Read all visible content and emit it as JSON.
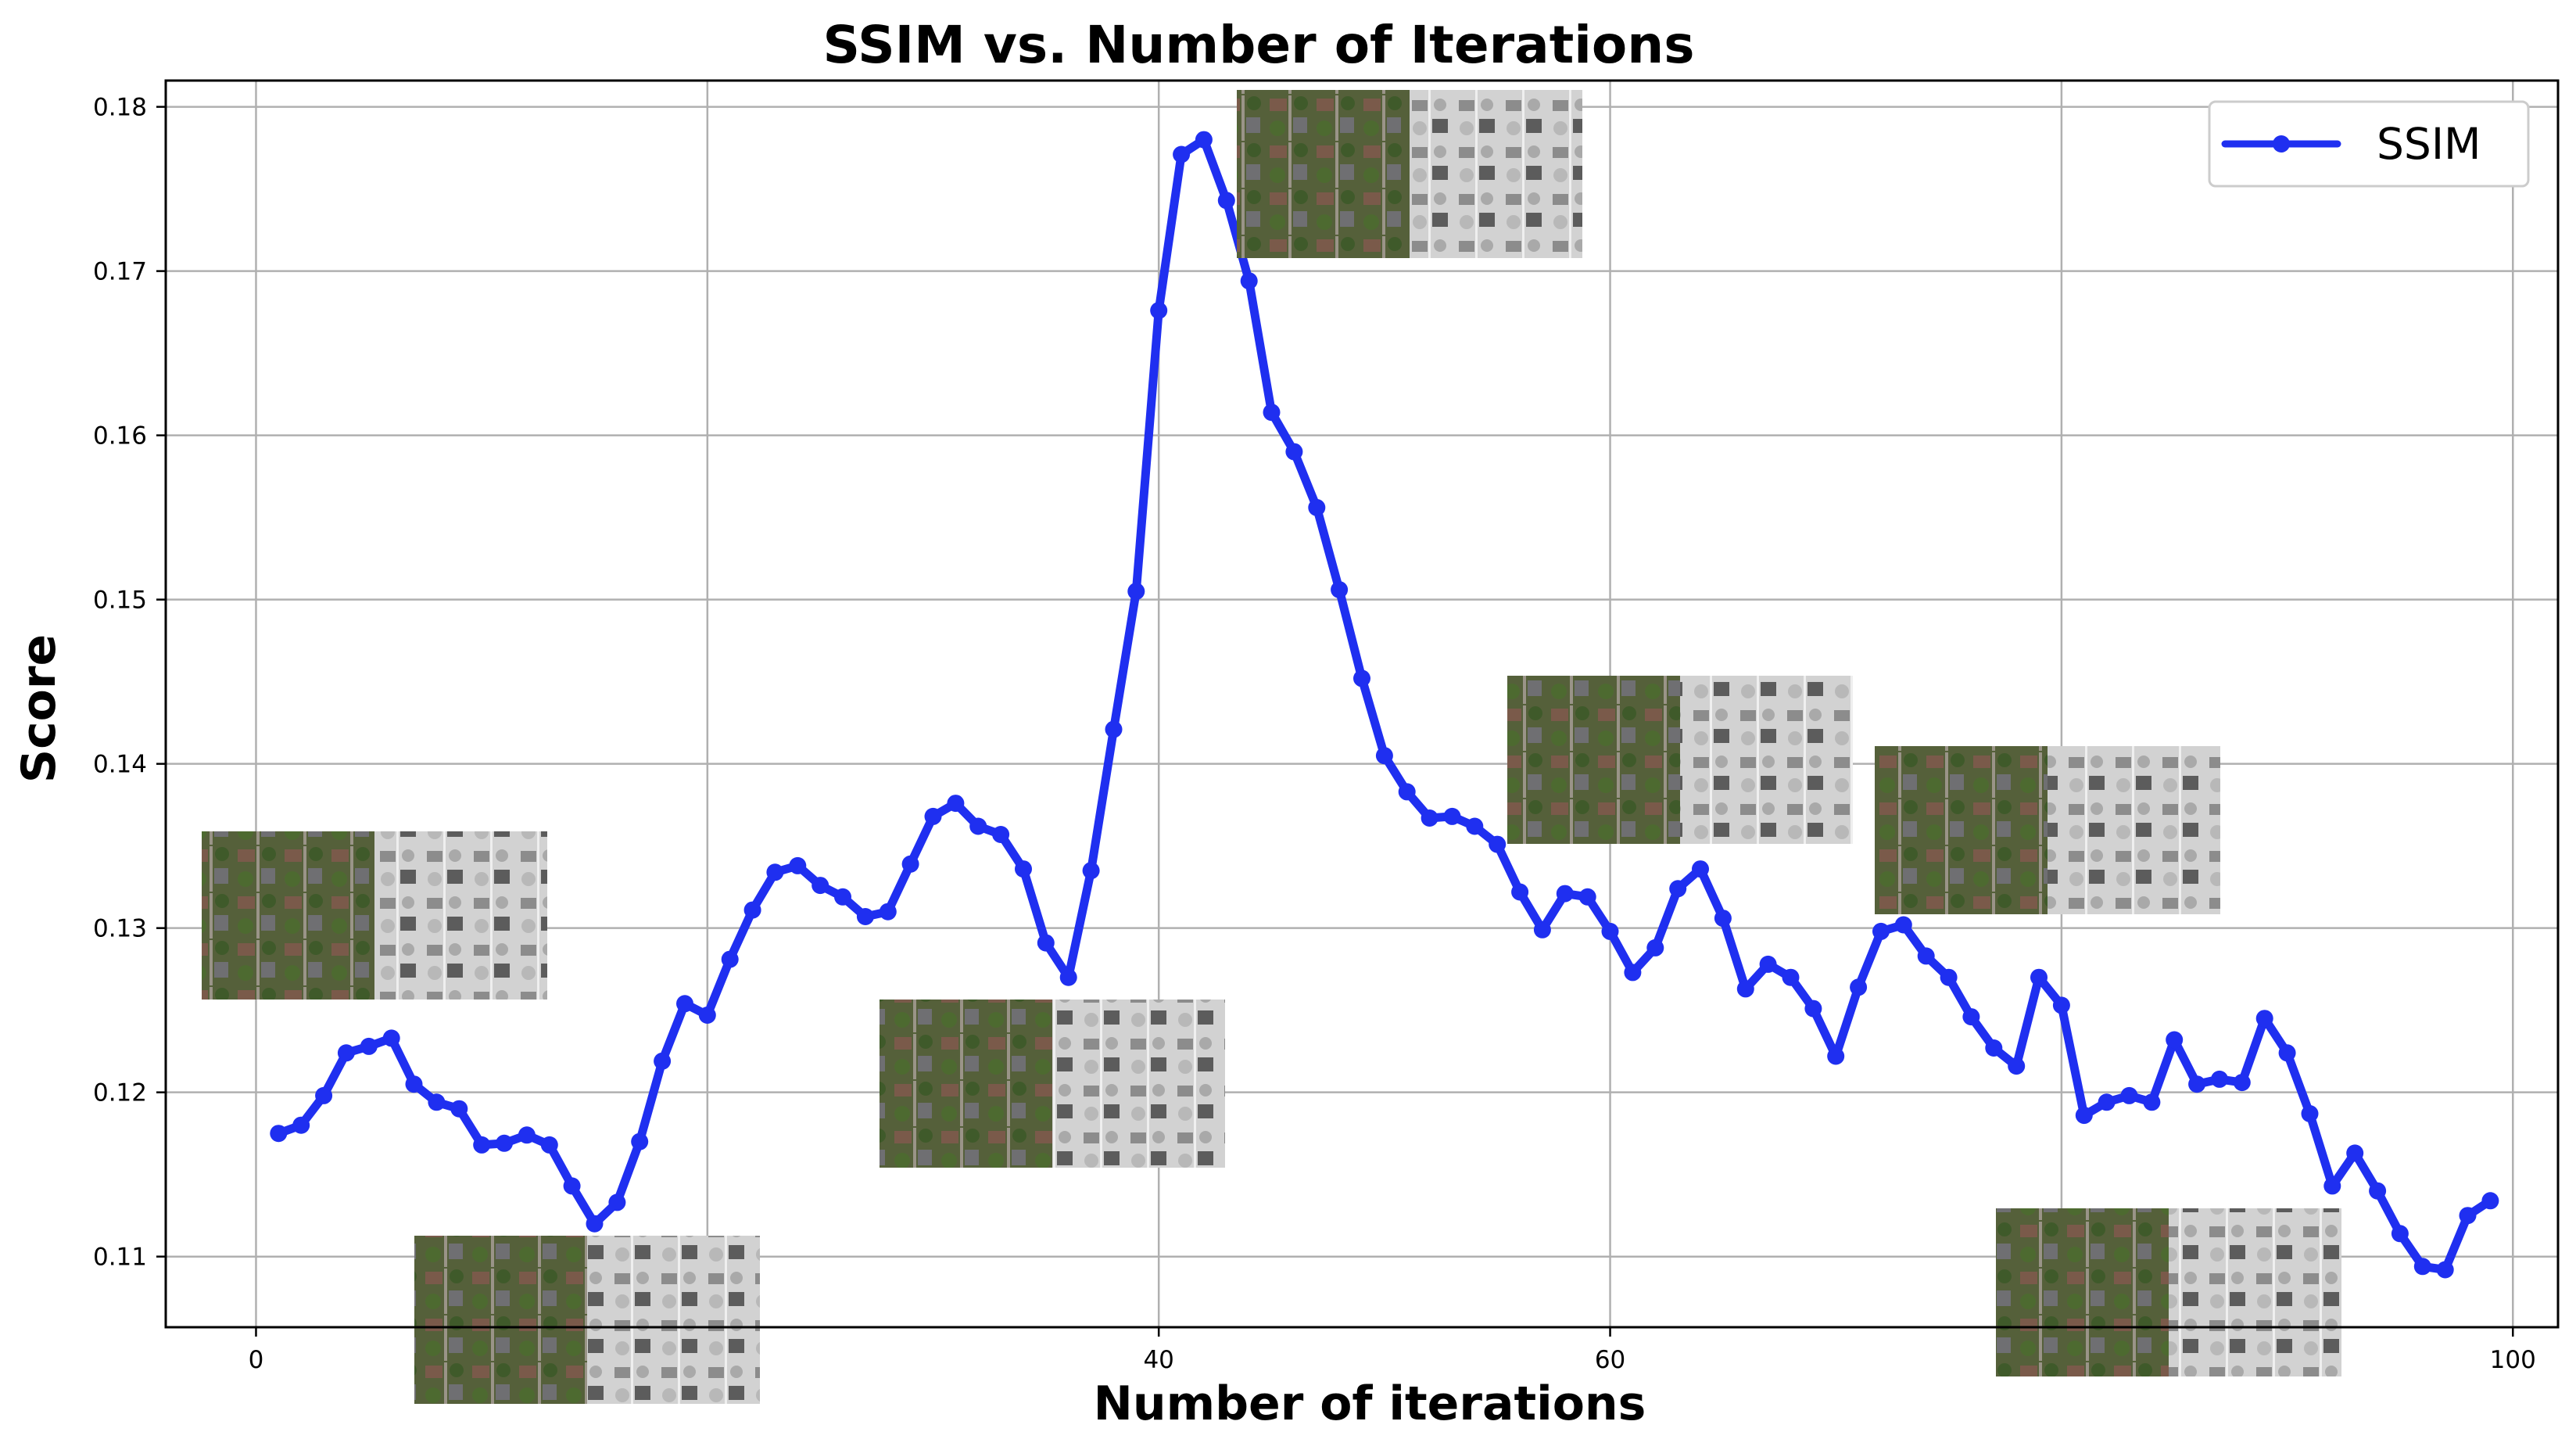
{
  "chart_data": {
    "type": "line",
    "title": "SSIM vs. Number of Iterations",
    "xlabel": "Number of iterations",
    "ylabel": "Score",
    "xlim": [
      -4,
      102
    ],
    "ylim": [
      0.1057,
      0.1816
    ],
    "xticks": [
      0,
      40,
      60,
      100
    ],
    "xtick_labels": [
      "0",
      "40",
      "60",
      "100"
    ],
    "yticks": [
      0.11,
      0.12,
      0.13,
      0.14,
      0.15,
      0.16,
      0.17,
      0.18
    ],
    "ytick_labels": [
      "0.11",
      "0.12",
      "0.13",
      "0.14",
      "0.15",
      "0.16",
      "0.17",
      "0.18"
    ],
    "grid_x": [
      0,
      20,
      40,
      60,
      80,
      100
    ],
    "grid": true,
    "legend_position": "top-right",
    "series": [
      {
        "name": "SSIM",
        "color": "#1f2ff0",
        "marker": "circle",
        "x": [
          1,
          2,
          3,
          4,
          5,
          6,
          7,
          8,
          9,
          10,
          11,
          12,
          13,
          14,
          15,
          16,
          17,
          18,
          19,
          20,
          21,
          22,
          23,
          24,
          25,
          26,
          27,
          28,
          29,
          30,
          31,
          32,
          33,
          34,
          35,
          36,
          37,
          38,
          39,
          40,
          41,
          42,
          43,
          44,
          45,
          46,
          47,
          48,
          49,
          50,
          51,
          52,
          53,
          54,
          55,
          56,
          57,
          58,
          59,
          60,
          61,
          62,
          63,
          64,
          65,
          66,
          67,
          68,
          69,
          70,
          71,
          72,
          73,
          74,
          75,
          76,
          77,
          78,
          79,
          80,
          81,
          82,
          83,
          84,
          85,
          86,
          87,
          88,
          89,
          90,
          91,
          92,
          93,
          94,
          95,
          96,
          97,
          98,
          99
        ],
        "y": [
          0.1175,
          0.118,
          0.1198,
          0.1224,
          0.1228,
          0.1233,
          0.1205,
          0.1194,
          0.119,
          0.1168,
          0.1169,
          0.1174,
          0.1168,
          0.1143,
          0.112,
          0.1133,
          0.117,
          0.1219,
          0.1254,
          0.1247,
          0.1281,
          0.1311,
          0.1334,
          0.1338,
          0.1326,
          0.1319,
          0.1307,
          0.131,
          0.1339,
          0.1368,
          0.1376,
          0.1362,
          0.1357,
          0.1336,
          0.1291,
          0.127,
          0.1335,
          0.1421,
          0.1505,
          0.1676,
          0.1771,
          0.178,
          0.1743,
          0.1694,
          0.1614,
          0.159,
          0.1556,
          0.1506,
          0.1452,
          0.1405,
          0.1383,
          0.1367,
          0.1368,
          0.1362,
          0.1351,
          0.1322,
          0.1299,
          0.1321,
          0.1319,
          0.1298,
          0.1273,
          0.1288,
          0.1324,
          0.1336,
          0.1306,
          0.1263,
          0.1278,
          0.127,
          0.1251,
          0.1222,
          0.1264,
          0.1298,
          0.1302,
          0.1283,
          0.127,
          0.1246,
          0.1227,
          0.1216,
          0.127,
          0.1253,
          0.1186,
          0.1194,
          0.1198,
          0.1194,
          0.1232,
          0.1205,
          0.1208,
          0.1206,
          0.1245,
          0.1224,
          0.1187,
          0.1143,
          0.1163,
          0.114,
          0.1114,
          0.1094,
          0.1092,
          0.1125,
          0.1134
        ]
      }
    ]
  }
}
